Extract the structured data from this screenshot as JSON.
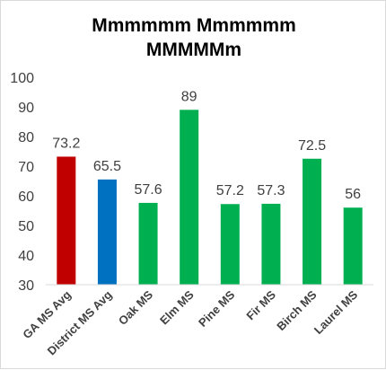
{
  "chart_data": {
    "type": "bar",
    "title_lines": [
      "Mmmmmm Mmmmmm",
      "MMMMMm"
    ],
    "categories": [
      "GA MS Avg",
      "District MS Avg",
      "Oak MS",
      "Elm MS",
      "Pine MS",
      "Fir MS",
      "Birch MS",
      "Laurel MS"
    ],
    "values": [
      73.2,
      65.5,
      57.6,
      89,
      57.2,
      57.3,
      72.5,
      56
    ],
    "value_labels": [
      "73.2",
      "65.5",
      "57.6",
      "89",
      "57.2",
      "57.3",
      "72.5",
      "56"
    ],
    "bar_colors": [
      "#c00000",
      "#0070c0",
      "#00b050",
      "#00b050",
      "#00b050",
      "#00b050",
      "#00b050",
      "#00b050"
    ],
    "ylim": [
      30,
      100
    ],
    "y_ticks": [
      "30",
      "40",
      "50",
      "60",
      "70",
      "80",
      "90",
      "100"
    ],
    "grid": false,
    "legend": "none"
  }
}
